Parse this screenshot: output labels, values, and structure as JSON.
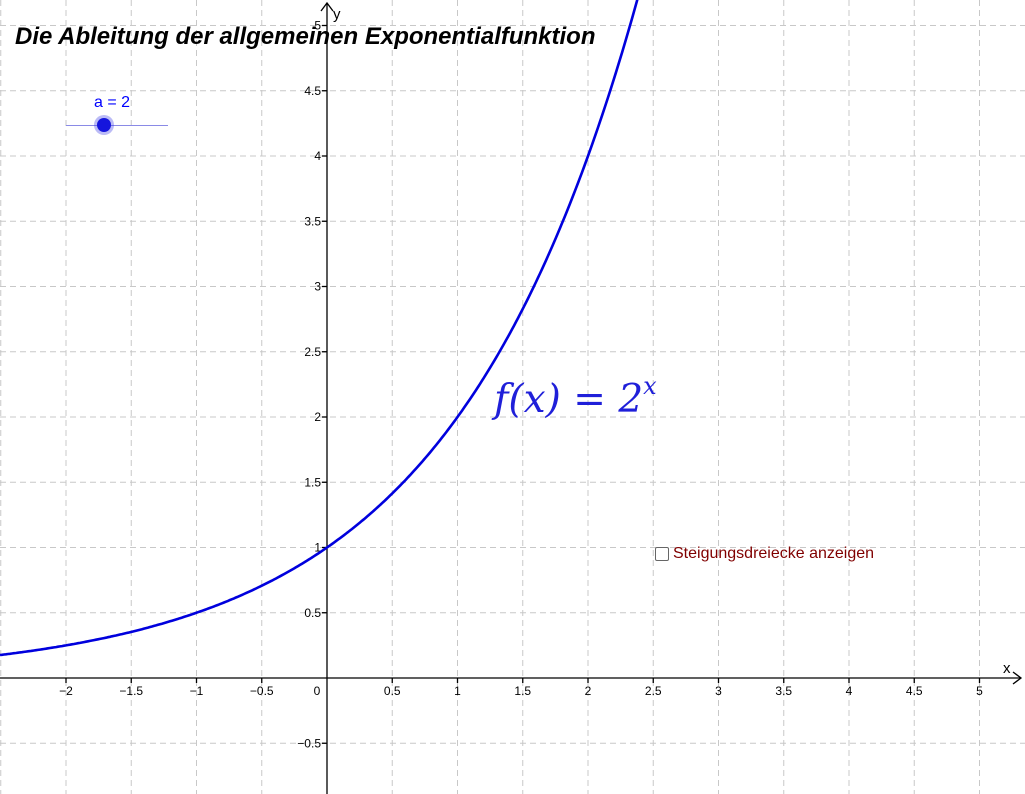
{
  "title": "Die Ableitung der allgemeinen Exponentialfunktion",
  "slider": {
    "label": "a = 2",
    "value": 2
  },
  "formula": {
    "lhs": "f(x) = 2",
    "exponent": "x"
  },
  "checkbox": {
    "label": "Steigungsdreiecke anzeigen",
    "checked": false
  },
  "colors": {
    "curve": "#0000dd",
    "grid": "#c8c8c8",
    "checkbox_label": "#800000"
  },
  "chart_data": {
    "type": "line",
    "xlabel": "x",
    "ylabel": "y",
    "xlim": [
      -2.5,
      5.3
    ],
    "ylim": [
      -0.9,
      5.2
    ],
    "grid": true,
    "x_ticks": [
      -2,
      -1.5,
      -1,
      -0.5,
      0,
      0.5,
      1,
      1.5,
      2,
      2.5,
      3,
      3.5,
      4,
      4.5,
      5
    ],
    "x_tick_labels": [
      "−2",
      "−1.5",
      "−1",
      "−0.5",
      "0",
      "0.5",
      "1",
      "1.5",
      "2",
      "2.5",
      "3",
      "3.5",
      "4",
      "4.5",
      "5"
    ],
    "y_ticks": [
      -0.5,
      0.5,
      1,
      1.5,
      2,
      2.5,
      3,
      3.5,
      4,
      4.5,
      5
    ],
    "y_tick_labels": [
      "−0.5",
      "0.5",
      "1",
      "1.5",
      "2",
      "2.5",
      "3",
      "3.5",
      "4",
      "4.5",
      "5"
    ],
    "series": [
      {
        "function": "2^x",
        "x": [
          -2.5,
          -2,
          -1.5,
          -1,
          -0.5,
          0,
          0.5,
          1,
          1.5,
          2,
          2.32
        ],
        "y": [
          0.177,
          0.25,
          0.354,
          0.5,
          0.707,
          1,
          1.414,
          2,
          2.828,
          4,
          5
        ]
      }
    ]
  }
}
